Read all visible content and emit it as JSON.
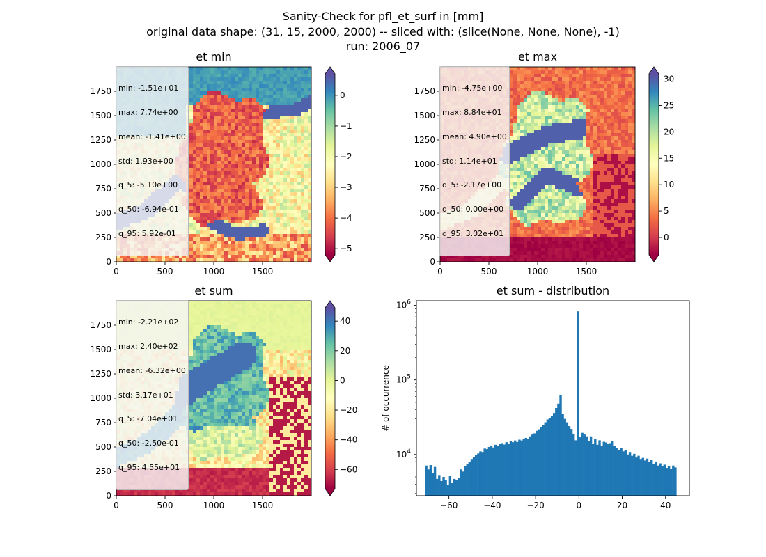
{
  "figure": {
    "title_lines": [
      "Sanity-Check for pfl_et_surf in [mm]",
      "original data shape: (31, 15, 2000, 2000) -- sliced with: (slice(None, None, None), -1)",
      "run: 2006_07"
    ]
  },
  "chart_data": [
    {
      "type": "heatmap",
      "title": "et min",
      "colormap": "Spectral",
      "x_ticks": [
        0,
        500,
        1000,
        1500
      ],
      "y_ticks": [
        0,
        250,
        500,
        750,
        1000,
        1250,
        1500,
        1750
      ],
      "xlim": [
        0,
        2000
      ],
      "ylim": [
        0,
        2000
      ],
      "colorbar": {
        "vmin": -5.2,
        "vmax": 0.7,
        "ticks": [
          0,
          -1,
          -2,
          -3,
          -4,
          -5
        ],
        "tick_labels": [
          "0",
          "−1",
          "−2",
          "−3",
          "−4",
          "−5"
        ]
      },
      "stats": [
        "min: -1.51e+01",
        "max: 7.74e+00",
        "mean: -1.41e+00",
        "std: 1.93e+00",
        "q_5: -5.10e+00",
        "q_50: -6.94e-01",
        "q_95: 5.92e-01"
      ]
    },
    {
      "type": "heatmap",
      "title": "et max",
      "colormap": "Spectral",
      "x_ticks": [
        0,
        500,
        1000,
        1500
      ],
      "y_ticks": [
        0,
        250,
        500,
        750,
        1000,
        1250,
        1500,
        1750
      ],
      "xlim": [
        0,
        2000
      ],
      "ylim": [
        0,
        2000
      ],
      "colorbar": {
        "vmin": -3.3,
        "vmax": 31,
        "ticks": [
          30,
          25,
          20,
          15,
          10,
          5,
          0
        ],
        "tick_labels": [
          "30",
          "25",
          "20",
          "15",
          "10",
          "5",
          "0"
        ]
      },
      "stats": [
        "min: -4.75e+00",
        "max: 8.84e+01",
        "mean: 4.90e+00",
        "std: 1.14e+01",
        "q_5: -2.17e+00",
        "q_50: 0.00e+00",
        "q_95: 3.02e+01"
      ]
    },
    {
      "type": "heatmap",
      "title": "et sum",
      "colormap": "Spectral",
      "x_ticks": [
        0,
        500,
        1000,
        1500
      ],
      "y_ticks": [
        0,
        250,
        500,
        750,
        1000,
        1250,
        1500,
        1750
      ],
      "xlim": [
        0,
        2000
      ],
      "ylim": [
        0,
        2000
      ],
      "colorbar": {
        "vmin": -73,
        "vmax": 49,
        "ticks": [
          40,
          20,
          0,
          -20,
          -40,
          -60
        ],
        "tick_labels": [
          "40",
          "20",
          "0",
          "−20",
          "−40",
          "−60"
        ]
      },
      "stats": [
        "min: -2.21e+02",
        "max: 2.40e+02",
        "mean: -6.32e+00",
        "std: 3.17e+01",
        "q_5: -7.04e+01",
        "q_50: -2.50e-01",
        "q_95: 4.55e+01"
      ]
    },
    {
      "type": "bar",
      "title": "et sum - distribution",
      "ylabel": "# of occurrence",
      "yscale": "log",
      "xlim": [
        -75,
        51
      ],
      "ylim": [
        2800,
        1150000
      ],
      "x_ticks": [
        -60,
        -40,
        -20,
        0,
        20,
        40
      ],
      "x_tick_labels": [
        "−60",
        "−40",
        "−20",
        "0",
        "20",
        "40"
      ],
      "y_major_ticks": [
        10000,
        100000,
        1000000
      ],
      "y_tick_labels": [
        "10^4",
        "10^5",
        "10^6"
      ],
      "bar_color": "#1f77b4",
      "bins": {
        "x": [
          -70.5,
          -69.5,
          -68.5,
          -67.5,
          -66.5,
          -65.5,
          -64.5,
          -63.5,
          -62.5,
          -61.5,
          -60.5,
          -59.5,
          -58.5,
          -57.5,
          -56.5,
          -55.5,
          -54.5,
          -53.5,
          -52.5,
          -51.5,
          -50.5,
          -49.5,
          -48.5,
          -47.5,
          -46.5,
          -45.5,
          -44.5,
          -43.5,
          -42.5,
          -41.5,
          -40.5,
          -39.5,
          -38.5,
          -37.5,
          -36.5,
          -35.5,
          -34.5,
          -33.5,
          -32.5,
          -31.5,
          -30.5,
          -29.5,
          -28.5,
          -27.5,
          -26.5,
          -25.5,
          -24.5,
          -23.5,
          -22.5,
          -21.5,
          -20.5,
          -19.5,
          -18.5,
          -17.5,
          -16.5,
          -15.5,
          -14.5,
          -13.5,
          -12.5,
          -11.5,
          -10.5,
          -9.5,
          -8.5,
          -7.5,
          -6.5,
          -5.5,
          -4.5,
          -3.5,
          -2.5,
          -1.5,
          -0.5,
          0.5,
          1.5,
          2.5,
          3.5,
          4.5,
          5.5,
          6.5,
          7.5,
          8.5,
          9.5,
          10.5,
          11.5,
          12.5,
          13.5,
          14.5,
          15.5,
          16.5,
          17.5,
          18.5,
          19.5,
          20.5,
          21.5,
          22.5,
          23.5,
          24.5,
          25.5,
          26.5,
          27.5,
          28.5,
          29.5,
          30.5,
          31.5,
          32.5,
          33.5,
          34.5,
          35.5,
          36.5,
          37.5,
          38.5,
          39.5,
          40.5,
          41.5,
          42.5,
          43.5,
          44.5
        ],
        "counts": [
          7100,
          6300,
          7200,
          5600,
          6800,
          4700,
          5300,
          4400,
          5000,
          4500,
          3900,
          5200,
          4200,
          4700,
          4500,
          4800,
          6300,
          5900,
          6900,
          7400,
          7900,
          8700,
          9300,
          9900,
          10300,
          11000,
          10800,
          12000,
          11800,
          12600,
          13000,
          12400,
          13500,
          13000,
          13900,
          14200,
          13600,
          14600,
          13900,
          15100,
          14600,
          15400,
          14700,
          15800,
          15400,
          16200,
          16700,
          16300,
          17500,
          18500,
          19200,
          20800,
          21800,
          23500,
          25000,
          27000,
          29500,
          31000,
          33000,
          36000,
          42000,
          48000,
          62000,
          35000,
          30000,
          27000,
          24000,
          22000,
          19000,
          15500,
          830000,
          17000,
          19500,
          18500,
          17500,
          15000,
          17500,
          14000,
          16000,
          13500,
          15500,
          13000,
          14800,
          14500,
          13800,
          14200,
          15000,
          13000,
          12200,
          11500,
          12300,
          11000,
          11500,
          10000,
          10800,
          9600,
          10200,
          9100,
          9600,
          8700,
          9000,
          8300,
          8800,
          7900,
          8400,
          7500,
          8000,
          7100,
          7600,
          6900,
          7300,
          6600,
          7000,
          6400,
          7100,
          6700
        ]
      }
    }
  ]
}
